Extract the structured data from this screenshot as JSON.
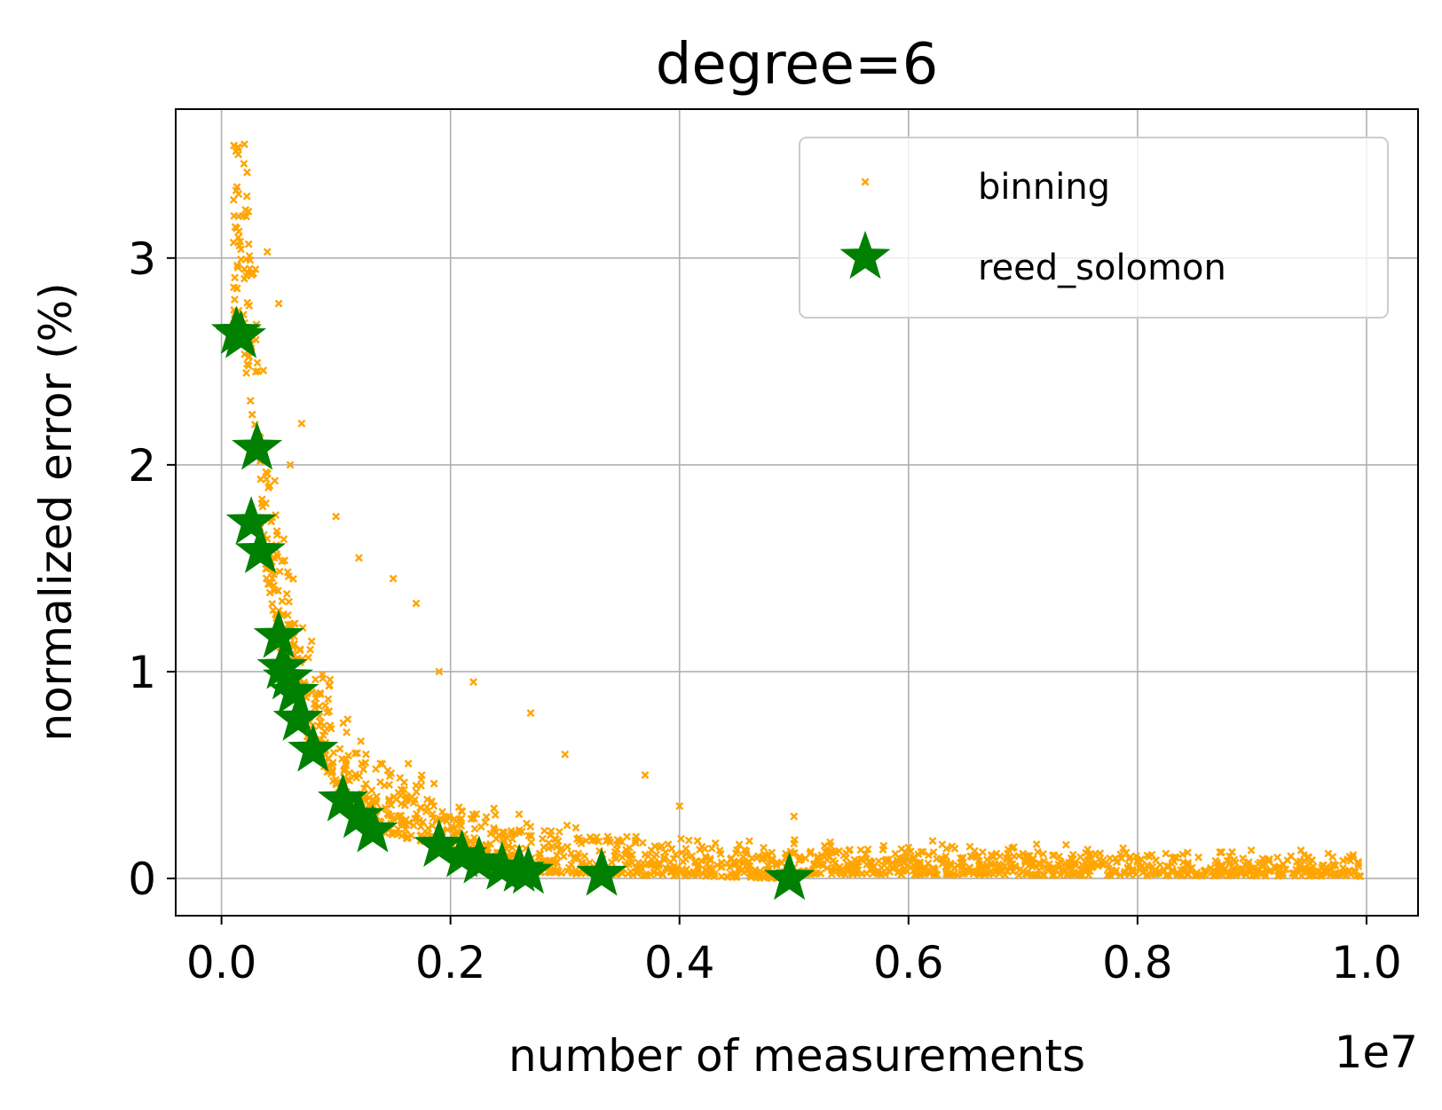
{
  "chart_data": {
    "type": "scatter",
    "title": "degree=6",
    "xlabel": "number of measurements",
    "ylabel": "normalized error (%)",
    "x_offset_text": "1e7",
    "xlim": [
      -0.04,
      1.045
    ],
    "ylim": [
      -0.18,
      3.72
    ],
    "xticks": [
      0.0,
      0.2,
      0.4,
      0.6,
      0.8,
      1.0
    ],
    "xtick_labels": [
      "0.0",
      "0.2",
      "0.4",
      "0.6",
      "0.8",
      "1.0"
    ],
    "yticks": [
      0,
      1,
      2,
      3
    ],
    "ytick_labels": [
      "0",
      "1",
      "2",
      "3"
    ],
    "grid": true,
    "legend_position": "top-right",
    "series": [
      {
        "name": "binning",
        "marker": "x",
        "color": "#ffa500",
        "trend": {
          "description": "dense cloud; lower envelope roughly follows the reed_solomon points, spread grows at small x",
          "x_min": 0.01,
          "x_max": 0.995,
          "representative_points": [
            [
              0.02,
              3.55
            ],
            [
              0.012,
              3.15
            ],
            [
              0.02,
              2.9
            ],
            [
              0.04,
              3.03
            ],
            [
              0.05,
              2.78
            ],
            [
              0.03,
              2.45
            ],
            [
              0.07,
              2.2
            ],
            [
              0.06,
              2.0
            ],
            [
              0.1,
              1.75
            ],
            [
              0.12,
              1.55
            ],
            [
              0.15,
              1.45
            ],
            [
              0.17,
              1.33
            ],
            [
              0.19,
              1.0
            ],
            [
              0.22,
              0.95
            ],
            [
              0.27,
              0.8
            ],
            [
              0.3,
              0.6
            ],
            [
              0.37,
              0.5
            ],
            [
              0.4,
              0.35
            ],
            [
              0.5,
              0.3
            ],
            [
              0.6,
              0.15
            ],
            [
              0.7,
              0.12
            ],
            [
              0.8,
              0.08
            ],
            [
              0.9,
              0.05
            ],
            [
              0.99,
              0.03
            ]
          ]
        }
      },
      {
        "name": "reed_solomon",
        "marker": "star",
        "color": "#008000",
        "x": [
          0.013,
          0.017,
          0.031,
          0.026,
          0.034,
          0.05,
          0.053,
          0.058,
          0.063,
          0.067,
          0.08,
          0.106,
          0.12,
          0.132,
          0.19,
          0.21,
          0.225,
          0.245,
          0.26,
          0.268,
          0.332,
          0.496
        ],
        "y": [
          2.64,
          2.62,
          2.08,
          1.72,
          1.58,
          1.17,
          1.02,
          0.97,
          0.9,
          0.77,
          0.62,
          0.38,
          0.3,
          0.23,
          0.16,
          0.11,
          0.08,
          0.05,
          0.04,
          0.03,
          0.02,
          0.0
        ]
      }
    ]
  }
}
